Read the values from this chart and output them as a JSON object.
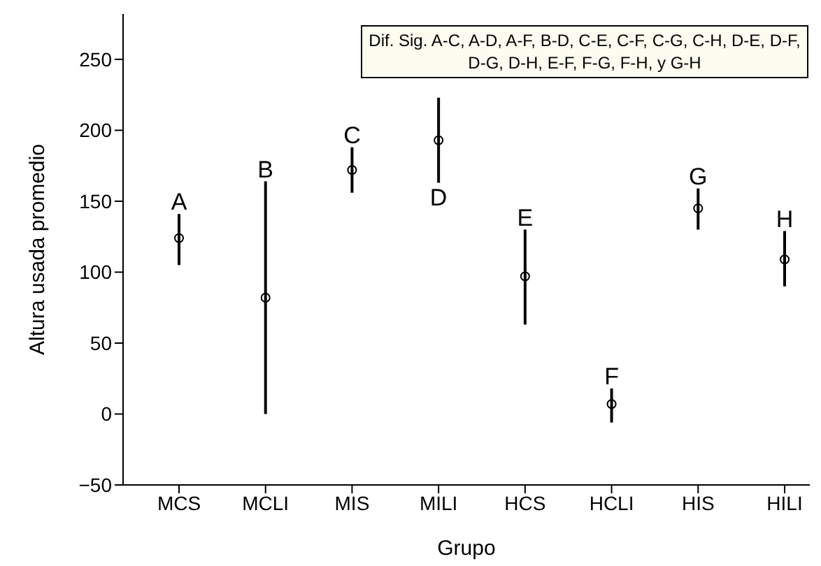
{
  "chart_data": {
    "type": "scatter",
    "xlabel": "Grupo",
    "ylabel": "Altura usada promedio",
    "categories": [
      "MCS",
      "MCLI",
      "MIS",
      "MILI",
      "HCS",
      "HCLI",
      "HIS",
      "HILI"
    ],
    "values": [
      124,
      82,
      172,
      193,
      97,
      7,
      145,
      109
    ],
    "errors": [
      [
        105,
        141
      ],
      [
        0,
        164
      ],
      [
        156,
        188
      ],
      [
        163,
        223
      ],
      [
        63,
        130
      ],
      [
        -6,
        18
      ],
      [
        130,
        159
      ],
      [
        90,
        129
      ]
    ],
    "color": "#000000",
    "marker": "circle",
    "grid": false,
    "legend": false,
    "ylim": [
      -50,
      282
    ],
    "yticks": [
      {
        "value": -50,
        "label": "−50"
      },
      0,
      50,
      100,
      150,
      200,
      250
    ],
    "annotations": [
      "Dif. Sig. A-C, A-D, A-F, B-D, C-E, C-F, C-G, C-H, D-E, D-F, D-G, D-H, E-F, F-G, F-H, y G-H",
      {
        "text": "A",
        "x": "MCS",
        "y": 141
      },
      {
        "text": "B",
        "x": "MCLI",
        "y": 164
      },
      {
        "text": "C",
        "x": "MIS",
        "y": 188
      },
      {
        "text": "D",
        "x": "MILI",
        "y": 163
      },
      {
        "text": "E",
        "x": "HCS",
        "y": 130
      },
      {
        "text": "F",
        "x": "HCLI",
        "y": 18
      },
      {
        "text": "G",
        "x": "HIS",
        "y": 159
      },
      {
        "text": "H",
        "x": "HILI",
        "y": 129
      }
    ]
  }
}
